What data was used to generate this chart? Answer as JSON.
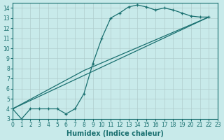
{
  "xlabel": "Humidex (Indice chaleur)",
  "bg_color": "#c8eaea",
  "grid_color": "#b0cccc",
  "line_color": "#1a7070",
  "xlim": [
    0,
    23
  ],
  "ylim": [
    3,
    14.5
  ],
  "xticks": [
    0,
    1,
    2,
    3,
    4,
    5,
    6,
    7,
    8,
    9,
    10,
    11,
    12,
    13,
    14,
    15,
    16,
    17,
    18,
    19,
    20,
    21,
    22,
    23
  ],
  "yticks": [
    3,
    4,
    5,
    6,
    7,
    8,
    9,
    10,
    11,
    12,
    13,
    14
  ],
  "line1_x": [
    0,
    1,
    2,
    3,
    4,
    5,
    6,
    7,
    8,
    9,
    10,
    11,
    12,
    13,
    14,
    15,
    16,
    17,
    18,
    19,
    20,
    21,
    22
  ],
  "line1_y": [
    4.0,
    3.0,
    4.0,
    4.0,
    4.0,
    4.0,
    3.5,
    4.0,
    5.5,
    8.5,
    11.0,
    13.0,
    13.5,
    14.1,
    14.3,
    14.1,
    13.8,
    14.0,
    13.8,
    13.5,
    13.2,
    13.1,
    13.1
  ],
  "line2_x": [
    0,
    22
  ],
  "line2_y": [
    4.0,
    13.1
  ],
  "line3_x": [
    0,
    8,
    22
  ],
  "line3_y": [
    4.0,
    7.8,
    13.1
  ]
}
